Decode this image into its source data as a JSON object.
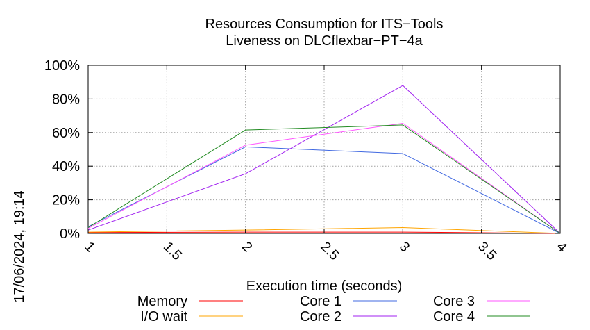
{
  "chart_data": {
    "type": "line",
    "title_line1": "Resources Consumption for ITS−Tools",
    "title_line2": "Liveness on DLCflexbar−PT−4a",
    "xlabel": "Execution time (seconds)",
    "ylabel": "",
    "timestamp": "17/06/2024, 19:14",
    "xlim": [
      1,
      4
    ],
    "ylim": [
      0,
      100
    ],
    "x_ticks": [
      {
        "value": 1,
        "label": "1"
      },
      {
        "value": 1.5,
        "label": "1.5"
      },
      {
        "value": 2,
        "label": "2"
      },
      {
        "value": 2.5,
        "label": "2.5"
      },
      {
        "value": 3,
        "label": "3"
      },
      {
        "value": 3.5,
        "label": "3.5"
      },
      {
        "value": 4,
        "label": "4"
      }
    ],
    "y_ticks": [
      {
        "value": 0,
        "label": "0%"
      },
      {
        "value": 20,
        "label": "20%"
      },
      {
        "value": 40,
        "label": "40%"
      },
      {
        "value": 60,
        "label": "60%"
      },
      {
        "value": 80,
        "label": "80%"
      },
      {
        "value": 100,
        "label": "100%"
      }
    ],
    "grid": true,
    "legend_position": "bottom",
    "x": [
      1,
      2,
      3,
      4
    ],
    "series": [
      {
        "name": "Memory",
        "color": "#ff0000",
        "values": [
          0.5,
          0.8,
          0.8,
          0
        ]
      },
      {
        "name": "I/O wait",
        "color": "#ffa500",
        "values": [
          0.8,
          2,
          3.5,
          0
        ]
      },
      {
        "name": "Core 1",
        "color": "#4169e1",
        "values": [
          4,
          51.5,
          47.5,
          0
        ]
      },
      {
        "name": "Core 2",
        "color": "#a020f0",
        "values": [
          2,
          35.5,
          88,
          0
        ]
      },
      {
        "name": "Core 3",
        "color": "#ff55ff",
        "values": [
          3,
          52.5,
          65.5,
          0
        ]
      },
      {
        "name": "Core 4",
        "color": "#228b22",
        "values": [
          3.5,
          61.5,
          64.5,
          0
        ]
      }
    ]
  }
}
